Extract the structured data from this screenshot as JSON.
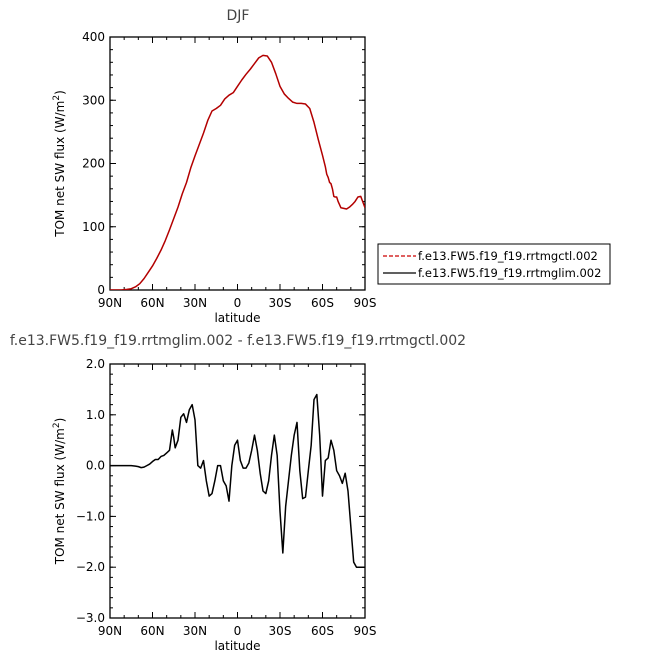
{
  "chart_data": [
    {
      "type": "line",
      "title": "DJF",
      "xlabel": "latitude",
      "ylabel_main": "TOM net SW flux (W/m",
      "ylabel_sup": "2",
      "ylabel_close": ")",
      "xlim": [
        90,
        -90
      ],
      "ylim": [
        0,
        400
      ],
      "xticks": [
        90,
        60,
        30,
        0,
        -30,
        -60,
        -90
      ],
      "xtick_labels": [
        "90N",
        "60N",
        "30N",
        "0",
        "30S",
        "60S",
        "90S"
      ],
      "yticks": [
        0,
        100,
        200,
        300,
        400
      ],
      "ytick_labels": [
        "0",
        "100",
        "200",
        "300",
        "400"
      ],
      "legend": {
        "placement": "right",
        "entries": [
          {
            "label": "f.e13.FW5.f19_f19.rrtmgctl.002",
            "color": "#cc0000",
            "dash": "dashed"
          },
          {
            "label": "f.e13.FW5.f19_f19.rrtmglim.002",
            "color": "#000000",
            "dash": "solid"
          }
        ]
      },
      "series": [
        {
          "color": "#b30000",
          "x": [
            90,
            86,
            82,
            78,
            75,
            72,
            69,
            66,
            63,
            60,
            57,
            54,
            51,
            48,
            45,
            42,
            39,
            36,
            33,
            30,
            27,
            24,
            21,
            18,
            15,
            12,
            9,
            6,
            3,
            0,
            -3,
            -6,
            -9,
            -12,
            -15,
            -18,
            -21,
            -24,
            -27,
            -30,
            -33,
            -36,
            -39,
            -42,
            -45,
            -48,
            -51,
            -54,
            -57,
            -60,
            -62,
            -63,
            -64,
            -65,
            -66,
            -67,
            -68,
            -69,
            -70,
            -71,
            -72,
            -73,
            -75,
            -77,
            -79,
            -81,
            -83,
            -85,
            -87,
            -90
          ],
          "values": [
            0,
            0,
            0,
            1,
            2,
            5,
            10,
            18,
            28,
            38,
            50,
            63,
            78,
            95,
            113,
            131,
            152,
            170,
            193,
            212,
            230,
            248,
            268,
            283,
            287,
            292,
            302,
            308,
            312,
            322,
            332,
            341,
            349,
            358,
            367,
            371,
            370,
            360,
            342,
            322,
            310,
            303,
            297,
            295,
            295,
            294,
            287,
            265,
            238,
            213,
            195,
            183,
            178,
            170,
            168,
            160,
            148,
            147,
            147,
            140,
            135,
            130,
            129,
            128,
            131,
            135,
            140,
            147,
            148,
            130
          ]
        }
      ]
    },
    {
      "type": "line",
      "title": "f.e13.FW5.f19_f19.rrtmglim.002 - f.e13.FW5.f19_f19.rrtmgctl.002",
      "xlabel": "latitude",
      "ylabel_main": "TOM net SW flux (W/m",
      "ylabel_sup": "2",
      "ylabel_close": ")",
      "xlim": [
        90,
        -90
      ],
      "ylim": [
        -3.0,
        2.0
      ],
      "xticks": [
        90,
        60,
        30,
        0,
        -30,
        -60,
        -90
      ],
      "xtick_labels": [
        "90N",
        "60N",
        "30N",
        "0",
        "30S",
        "60S",
        "90S"
      ],
      "yticks": [
        -3.0,
        -2.0,
        -1.0,
        0.0,
        1.0,
        2.0
      ],
      "ytick_labels": [
        "−3.0",
        "−2.0",
        "−1.0",
        "0.0",
        "1.0",
        "2.0"
      ],
      "series": [
        {
          "color": "#000000",
          "x": [
            90,
            85,
            80,
            75,
            72,
            70,
            68,
            66,
            64,
            62,
            60,
            58,
            56,
            54,
            52,
            50,
            48,
            46,
            45,
            44,
            42,
            40,
            38,
            36,
            34,
            32,
            30,
            28,
            26,
            24,
            22,
            20,
            18,
            16,
            14,
            12,
            10,
            8,
            6,
            4,
            2,
            0,
            -2,
            -4,
            -6,
            -8,
            -10,
            -12,
            -14,
            -16,
            -18,
            -20,
            -22,
            -24,
            -26,
            -28,
            -30,
            -32,
            -34,
            -36,
            -38,
            -40,
            -42,
            -44,
            -46,
            -48,
            -50,
            -52,
            -54,
            -56,
            -58,
            -60,
            -62,
            -64,
            -66,
            -68,
            -70,
            -72,
            -74,
            -76,
            -78,
            -80,
            -82,
            -84,
            -86,
            -88,
            -90
          ],
          "values": [
            0.0,
            0.0,
            0.0,
            0.0,
            -0.01,
            -0.02,
            -0.04,
            -0.03,
            0.0,
            0.03,
            0.08,
            0.12,
            0.12,
            0.18,
            0.2,
            0.25,
            0.3,
            0.7,
            0.55,
            0.35,
            0.5,
            0.95,
            1.02,
            0.85,
            1.1,
            1.2,
            0.9,
            0.0,
            -0.05,
            0.1,
            -0.3,
            -0.6,
            -0.55,
            -0.3,
            0.0,
            0.0,
            -0.3,
            -0.4,
            -0.7,
            0.0,
            0.4,
            0.5,
            0.1,
            -0.05,
            -0.05,
            0.05,
            0.3,
            0.6,
            0.3,
            -0.15,
            -0.5,
            -0.55,
            -0.3,
            0.2,
            0.6,
            0.2,
            -0.9,
            -1.72,
            -0.8,
            -0.3,
            0.2,
            0.6,
            0.85,
            -0.1,
            -0.65,
            -0.62,
            -0.1,
            0.4,
            1.3,
            1.4,
            0.6,
            -0.6,
            0.1,
            0.15,
            0.5,
            0.3,
            -0.1,
            -0.2,
            -0.35,
            -0.15,
            -0.5,
            -1.2,
            -1.9,
            -2.0,
            -2.0,
            -2.0,
            -2.0
          ]
        }
      ]
    }
  ]
}
